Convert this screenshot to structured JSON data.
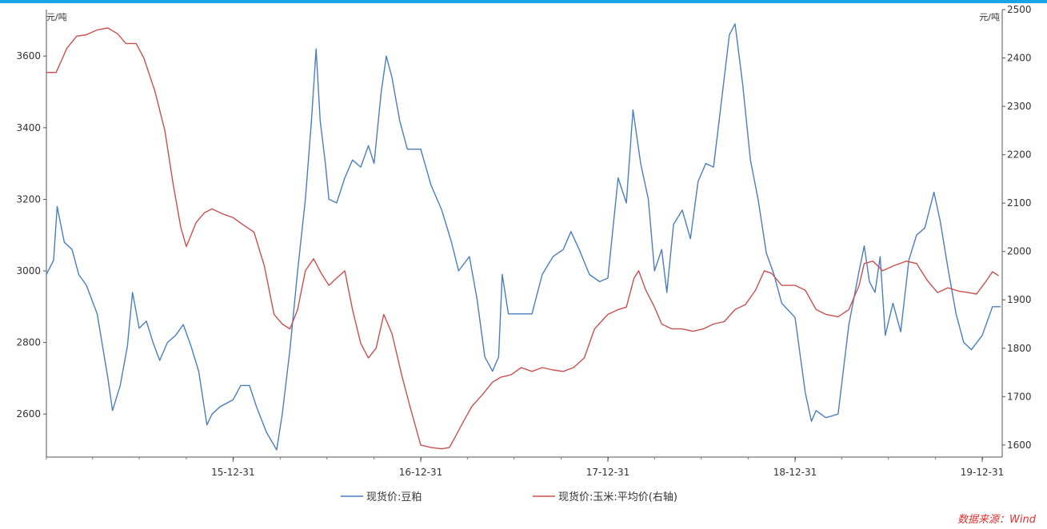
{
  "source_note": "数据来源：Wind",
  "chart_data": {
    "type": "line",
    "left_axis": {
      "unit": "元/吨",
      "ylim": [
        2480,
        3730
      ],
      "ticks": [
        2600,
        2800,
        3000,
        3200,
        3400,
        3600
      ]
    },
    "right_axis": {
      "unit": "元/吨",
      "ylim": [
        1575,
        2500
      ],
      "ticks": [
        1600,
        1700,
        1800,
        1900,
        2000,
        2100,
        2200,
        2300,
        2400,
        2500
      ]
    },
    "x_axis": {
      "range": [
        "2015-01-01",
        "2020-02-08"
      ],
      "tick_labels": [
        "15-12-31",
        "16-12-31",
        "17-12-31",
        "18-12-31",
        "19-12-31"
      ],
      "tick_dates": [
        "2015-12-31",
        "2016-12-31",
        "2017-12-31",
        "2018-12-31",
        "2019-12-31"
      ]
    },
    "grid": false,
    "legend_position": "bottom-center",
    "series": [
      {
        "name": "现货价:豆粕",
        "axis": "left",
        "color": "#4a7ebf",
        "points": [
          [
            "2015-01-01",
            2990
          ],
          [
            "2015-01-15",
            3030
          ],
          [
            "2015-01-22",
            3180
          ],
          [
            "2015-02-05",
            3080
          ],
          [
            "2015-02-20",
            3060
          ],
          [
            "2015-03-05",
            2990
          ],
          [
            "2015-03-20",
            2960
          ],
          [
            "2015-04-10",
            2880
          ],
          [
            "2015-05-01",
            2700
          ],
          [
            "2015-05-10",
            2610
          ],
          [
            "2015-05-25",
            2680
          ],
          [
            "2015-06-08",
            2790
          ],
          [
            "2015-06-18",
            2940
          ],
          [
            "2015-07-01",
            2840
          ],
          [
            "2015-07-15",
            2860
          ],
          [
            "2015-07-28",
            2800
          ],
          [
            "2015-08-10",
            2750
          ],
          [
            "2015-08-25",
            2800
          ],
          [
            "2015-09-10",
            2820
          ],
          [
            "2015-09-25",
            2850
          ],
          [
            "2015-10-10",
            2790
          ],
          [
            "2015-10-25",
            2720
          ],
          [
            "2015-11-10",
            2570
          ],
          [
            "2015-11-20",
            2600
          ],
          [
            "2015-12-05",
            2620
          ],
          [
            "2015-12-31",
            2640
          ],
          [
            "2016-01-15",
            2680
          ],
          [
            "2016-02-01",
            2680
          ],
          [
            "2016-02-15",
            2620
          ],
          [
            "2016-03-05",
            2550
          ],
          [
            "2016-03-25",
            2500
          ],
          [
            "2016-04-05",
            2600
          ],
          [
            "2016-04-20",
            2780
          ],
          [
            "2016-05-05",
            3000
          ],
          [
            "2016-05-20",
            3200
          ],
          [
            "2016-06-01",
            3420
          ],
          [
            "2016-06-10",
            3620
          ],
          [
            "2016-06-18",
            3420
          ],
          [
            "2016-06-28",
            3300
          ],
          [
            "2016-07-05",
            3200
          ],
          [
            "2016-07-20",
            3190
          ],
          [
            "2016-08-05",
            3260
          ],
          [
            "2016-08-20",
            3310
          ],
          [
            "2016-09-05",
            3290
          ],
          [
            "2016-09-20",
            3350
          ],
          [
            "2016-10-01",
            3300
          ],
          [
            "2016-10-15",
            3500
          ],
          [
            "2016-10-25",
            3600
          ],
          [
            "2016-11-05",
            3540
          ],
          [
            "2016-11-20",
            3420
          ],
          [
            "2016-12-05",
            3340
          ],
          [
            "2016-12-31",
            3340
          ],
          [
            "2017-01-20",
            3240
          ],
          [
            "2017-02-10",
            3170
          ],
          [
            "2017-03-01",
            3080
          ],
          [
            "2017-03-15",
            3000
          ],
          [
            "2017-04-05",
            3040
          ],
          [
            "2017-04-20",
            2920
          ],
          [
            "2017-05-05",
            2760
          ],
          [
            "2017-05-20",
            2720
          ],
          [
            "2017-06-01",
            2760
          ],
          [
            "2017-06-08",
            2990
          ],
          [
            "2017-06-20",
            2880
          ],
          [
            "2017-07-10",
            2880
          ],
          [
            "2017-08-05",
            2880
          ],
          [
            "2017-08-25",
            2990
          ],
          [
            "2017-09-15",
            3040
          ],
          [
            "2017-10-05",
            3060
          ],
          [
            "2017-10-20",
            3110
          ],
          [
            "2017-11-05",
            3060
          ],
          [
            "2017-11-25",
            2990
          ],
          [
            "2017-12-15",
            2970
          ],
          [
            "2017-12-31",
            2980
          ],
          [
            "2018-01-20",
            3260
          ],
          [
            "2018-02-05",
            3190
          ],
          [
            "2018-02-18",
            3450
          ],
          [
            "2018-03-05",
            3300
          ],
          [
            "2018-03-20",
            3200
          ],
          [
            "2018-04-01",
            3000
          ],
          [
            "2018-04-15",
            3060
          ],
          [
            "2018-04-25",
            2940
          ],
          [
            "2018-05-08",
            3130
          ],
          [
            "2018-05-25",
            3170
          ],
          [
            "2018-06-10",
            3090
          ],
          [
            "2018-06-25",
            3250
          ],
          [
            "2018-07-10",
            3300
          ],
          [
            "2018-07-25",
            3290
          ],
          [
            "2018-08-10",
            3480
          ],
          [
            "2018-08-25",
            3660
          ],
          [
            "2018-09-05",
            3690
          ],
          [
            "2018-09-20",
            3520
          ],
          [
            "2018-10-05",
            3310
          ],
          [
            "2018-10-20",
            3200
          ],
          [
            "2018-11-05",
            3050
          ],
          [
            "2018-11-20",
            2990
          ],
          [
            "2018-12-05",
            2910
          ],
          [
            "2018-12-31",
            2870
          ],
          [
            "2019-01-20",
            2660
          ],
          [
            "2019-02-01",
            2580
          ],
          [
            "2019-02-10",
            2610
          ],
          [
            "2019-03-01",
            2590
          ],
          [
            "2019-03-25",
            2600
          ],
          [
            "2019-04-15",
            2850
          ],
          [
            "2019-05-05",
            3000
          ],
          [
            "2019-05-15",
            3070
          ],
          [
            "2019-05-25",
            2970
          ],
          [
            "2019-06-05",
            2940
          ],
          [
            "2019-06-15",
            3040
          ],
          [
            "2019-06-25",
            2820
          ],
          [
            "2019-07-10",
            2910
          ],
          [
            "2019-07-25",
            2830
          ],
          [
            "2019-08-10",
            3030
          ],
          [
            "2019-08-25",
            3100
          ],
          [
            "2019-09-10",
            3120
          ],
          [
            "2019-09-28",
            3220
          ],
          [
            "2019-10-10",
            3140
          ],
          [
            "2019-10-25",
            3010
          ],
          [
            "2019-11-10",
            2880
          ],
          [
            "2019-11-25",
            2800
          ],
          [
            "2019-12-10",
            2780
          ],
          [
            "2019-12-31",
            2820
          ],
          [
            "2020-01-10",
            2860
          ],
          [
            "2020-01-20",
            2900
          ],
          [
            "2020-02-05",
            2900
          ]
        ]
      },
      {
        "name": "现货价:玉米:平均价(右轴)",
        "axis": "right",
        "color": "#c9504f",
        "points": [
          [
            "2015-01-01",
            2370
          ],
          [
            "2015-01-20",
            2370
          ],
          [
            "2015-02-10",
            2420
          ],
          [
            "2015-03-01",
            2445
          ],
          [
            "2015-03-20",
            2448
          ],
          [
            "2015-04-10",
            2458
          ],
          [
            "2015-05-01",
            2462
          ],
          [
            "2015-05-20",
            2450
          ],
          [
            "2015-06-05",
            2430
          ],
          [
            "2015-06-25",
            2430
          ],
          [
            "2015-07-10",
            2400
          ],
          [
            "2015-08-01",
            2330
          ],
          [
            "2015-08-20",
            2250
          ],
          [
            "2015-09-05",
            2140
          ],
          [
            "2015-09-20",
            2050
          ],
          [
            "2015-10-01",
            2010
          ],
          [
            "2015-10-20",
            2060
          ],
          [
            "2015-11-05",
            2080
          ],
          [
            "2015-11-20",
            2088
          ],
          [
            "2015-12-10",
            2078
          ],
          [
            "2015-12-31",
            2070
          ],
          [
            "2016-01-20",
            2055
          ],
          [
            "2016-02-10",
            2040
          ],
          [
            "2016-03-01",
            1970
          ],
          [
            "2016-03-20",
            1870
          ],
          [
            "2016-04-05",
            1850
          ],
          [
            "2016-04-20",
            1840
          ],
          [
            "2016-05-05",
            1880
          ],
          [
            "2016-05-20",
            1960
          ],
          [
            "2016-06-05",
            1985
          ],
          [
            "2016-06-20",
            1955
          ],
          [
            "2016-07-05",
            1930
          ],
          [
            "2016-07-20",
            1945
          ],
          [
            "2016-08-05",
            1960
          ],
          [
            "2016-08-20",
            1880
          ],
          [
            "2016-09-05",
            1810
          ],
          [
            "2016-09-20",
            1780
          ],
          [
            "2016-10-05",
            1800
          ],
          [
            "2016-10-20",
            1870
          ],
          [
            "2016-11-05",
            1830
          ],
          [
            "2016-11-25",
            1740
          ],
          [
            "2016-12-10",
            1680
          ],
          [
            "2016-12-31",
            1600
          ],
          [
            "2017-01-20",
            1595
          ],
          [
            "2017-02-10",
            1592
          ],
          [
            "2017-02-25",
            1595
          ],
          [
            "2017-03-10",
            1620
          ],
          [
            "2017-03-25",
            1650
          ],
          [
            "2017-04-10",
            1680
          ],
          [
            "2017-05-01",
            1705
          ],
          [
            "2017-05-20",
            1730
          ],
          [
            "2017-06-05",
            1740
          ],
          [
            "2017-06-25",
            1745
          ],
          [
            "2017-07-15",
            1760
          ],
          [
            "2017-08-05",
            1752
          ],
          [
            "2017-08-25",
            1760
          ],
          [
            "2017-09-15",
            1755
          ],
          [
            "2017-10-05",
            1752
          ],
          [
            "2017-10-25",
            1760
          ],
          [
            "2017-11-15",
            1780
          ],
          [
            "2017-12-05",
            1840
          ],
          [
            "2017-12-31",
            1870
          ],
          [
            "2018-01-20",
            1880
          ],
          [
            "2018-02-05",
            1885
          ],
          [
            "2018-02-20",
            1945
          ],
          [
            "2018-03-01",
            1960
          ],
          [
            "2018-03-15",
            1920
          ],
          [
            "2018-04-01",
            1885
          ],
          [
            "2018-04-15",
            1850
          ],
          [
            "2018-05-05",
            1840
          ],
          [
            "2018-05-25",
            1840
          ],
          [
            "2018-06-15",
            1835
          ],
          [
            "2018-07-05",
            1840
          ],
          [
            "2018-07-25",
            1850
          ],
          [
            "2018-08-15",
            1855
          ],
          [
            "2018-09-05",
            1880
          ],
          [
            "2018-09-25",
            1890
          ],
          [
            "2018-10-15",
            1920
          ],
          [
            "2018-11-01",
            1960
          ],
          [
            "2018-11-15",
            1955
          ],
          [
            "2018-12-05",
            1930
          ],
          [
            "2018-12-31",
            1930
          ],
          [
            "2019-01-20",
            1920
          ],
          [
            "2019-02-10",
            1880
          ],
          [
            "2019-03-01",
            1870
          ],
          [
            "2019-03-25",
            1865
          ],
          [
            "2019-04-15",
            1880
          ],
          [
            "2019-05-05",
            1930
          ],
          [
            "2019-05-15",
            1975
          ],
          [
            "2019-06-01",
            1980
          ],
          [
            "2019-06-20",
            1960
          ],
          [
            "2019-07-10",
            1970
          ],
          [
            "2019-08-05",
            1980
          ],
          [
            "2019-08-25",
            1975
          ],
          [
            "2019-09-15",
            1940
          ],
          [
            "2019-10-05",
            1915
          ],
          [
            "2019-10-25",
            1925
          ],
          [
            "2019-11-15",
            1918
          ],
          [
            "2019-12-05",
            1915
          ],
          [
            "2019-12-20",
            1912
          ],
          [
            "2020-01-05",
            1935
          ],
          [
            "2020-01-20",
            1958
          ],
          [
            "2020-02-01",
            1950
          ]
        ]
      }
    ]
  }
}
